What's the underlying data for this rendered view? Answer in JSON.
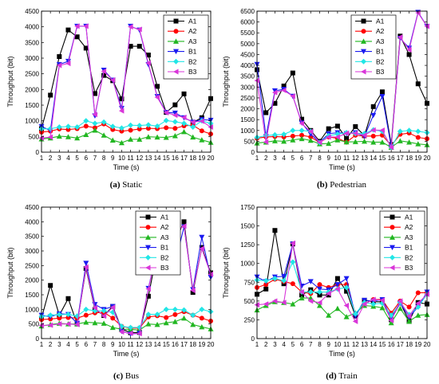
{
  "colors": {
    "A1": "#000000",
    "A2": "#ff0000",
    "A3": "#22b722",
    "B1": "#1b1bf0",
    "B2": "#22e6e6",
    "B3": "#d936d9"
  },
  "markers": {
    "A1": "square",
    "A2": "circle",
    "A3": "triangle-up",
    "B1": "triangle-down",
    "B2": "diamond",
    "B3": "triangle-left"
  },
  "chart_data": [
    {
      "type": "line",
      "caption_letter": "(a)",
      "caption_text": " Static",
      "xlabel": "Time (s)",
      "ylabel": "Throughput (bit)",
      "x": [
        1,
        2,
        3,
        4,
        5,
        6,
        7,
        8,
        9,
        10,
        11,
        12,
        13,
        14,
        15,
        16,
        17,
        18,
        19,
        20
      ],
      "xlim": [
        1,
        20
      ],
      "ylim": [
        0,
        4500
      ],
      "yticks": [
        0,
        500,
        1000,
        1500,
        2000,
        2500,
        3000,
        3500,
        4000,
        4500
      ],
      "legend_position": "top-right",
      "series": [
        {
          "name": "A1",
          "values": [
            750,
            1820,
            3050,
            3900,
            3680,
            3320,
            1870,
            2450,
            2280,
            1700,
            3380,
            3380,
            3100,
            2100,
            1270,
            1510,
            1860,
            950,
            1100,
            1710
          ]
        },
        {
          "name": "A2",
          "values": [
            640,
            670,
            740,
            720,
            750,
            830,
            780,
            900,
            720,
            670,
            700,
            740,
            760,
            750,
            780,
            760,
            840,
            860,
            680,
            580
          ]
        },
        {
          "name": "A3",
          "values": [
            420,
            450,
            510,
            490,
            450,
            560,
            700,
            540,
            380,
            300,
            410,
            410,
            490,
            480,
            470,
            520,
            650,
            480,
            390,
            310
          ]
        },
        {
          "name": "B1",
          "values": [
            820,
            690,
            2800,
            2900,
            4020,
            4020,
            1160,
            2620,
            2300,
            1400,
            4020,
            3900,
            2800,
            1780,
            1270,
            1250,
            1100,
            960,
            1040,
            1020
          ]
        },
        {
          "name": "B2",
          "values": [
            740,
            750,
            800,
            820,
            800,
            1000,
            920,
            960,
            820,
            770,
            860,
            850,
            870,
            830,
            1010,
            970,
            920,
            800,
            1000,
            920
          ]
        },
        {
          "name": "B3",
          "values": [
            450,
            480,
            2770,
            2830,
            4020,
            4020,
            1200,
            2580,
            2300,
            1320,
            4000,
            3920,
            2840,
            1750,
            1260,
            1180,
            1110,
            960,
            990,
            800
          ]
        }
      ]
    },
    {
      "type": "line",
      "caption_letter": "(b)",
      "caption_text": " Pedestrian",
      "xlabel": "Time (s)",
      "ylabel": "Throughput (bit)",
      "x": [
        1,
        2,
        3,
        4,
        5,
        6,
        7,
        8,
        9,
        10,
        11,
        12,
        13,
        14,
        15,
        16,
        17,
        18,
        19,
        20
      ],
      "xlim": [
        1,
        20
      ],
      "ylim": [
        0,
        6500
      ],
      "yticks": [
        0,
        500,
        1000,
        1500,
        2000,
        2500,
        3000,
        3500,
        4000,
        4500,
        5000,
        5500,
        6000,
        6500
      ],
      "legend_position": "top-left",
      "series": [
        {
          "name": "A1",
          "values": [
            3800,
            1820,
            2250,
            3050,
            3650,
            1520,
            1000,
            500,
            1080,
            1200,
            630,
            1180,
            760,
            2100,
            2780,
            350,
            5350,
            4500,
            3150,
            2250
          ]
        },
        {
          "name": "A2",
          "values": [
            640,
            700,
            720,
            700,
            740,
            780,
            700,
            440,
            700,
            640,
            460,
            780,
            740,
            740,
            780,
            300,
            820,
            880,
            680,
            620
          ]
        },
        {
          "name": "A3",
          "values": [
            420,
            460,
            520,
            500,
            560,
            620,
            540,
            380,
            400,
            560,
            470,
            480,
            500,
            460,
            460,
            220,
            520,
            460,
            380,
            340
          ]
        },
        {
          "name": "B1",
          "values": [
            4050,
            720,
            2830,
            2900,
            2580,
            1350,
            830,
            450,
            850,
            900,
            860,
            900,
            730,
            1700,
            2570,
            250,
            5250,
            4800,
            6450,
            5800
          ]
        },
        {
          "name": "B2",
          "values": [
            680,
            760,
            800,
            820,
            1000,
            1000,
            960,
            440,
            760,
            830,
            900,
            860,
            860,
            1030,
            960,
            220,
            960,
            1000,
            960,
            900
          ]
        },
        {
          "name": "B3",
          "values": [
            3300,
            470,
            2750,
            2850,
            2580,
            1320,
            950,
            450,
            700,
            700,
            870,
            870,
            780,
            1020,
            1010,
            220,
            5300,
            4720,
            6420,
            5800
          ]
        }
      ]
    },
    {
      "type": "line",
      "caption_letter": "(c)",
      "caption_text": " Bus",
      "xlabel": "Time (s)",
      "ylabel": "Throughput (bit)",
      "x": [
        1,
        2,
        3,
        4,
        5,
        6,
        7,
        8,
        9,
        10,
        11,
        12,
        13,
        14,
        15,
        16,
        17,
        18,
        19,
        20
      ],
      "xlim": [
        1,
        20
      ],
      "ylim": [
        0,
        4500
      ],
      "yticks": [
        0,
        500,
        1000,
        1500,
        2000,
        2500,
        3000,
        3500,
        4000,
        4500
      ],
      "legend_position": "top-left",
      "series": [
        {
          "name": "A1",
          "values": [
            700,
            1820,
            800,
            1370,
            500,
            2400,
            1000,
            790,
            1100,
            330,
            200,
            210,
            1450,
            3000,
            3650,
            3330,
            4000,
            1580,
            3120,
            2250
          ]
        },
        {
          "name": "A2",
          "values": [
            650,
            670,
            700,
            720,
            700,
            800,
            880,
            900,
            700,
            420,
            360,
            360,
            740,
            780,
            720,
            820,
            920,
            800,
            700,
            600
          ]
        },
        {
          "name": "A3",
          "values": [
            430,
            480,
            520,
            500,
            500,
            560,
            540,
            520,
            380,
            320,
            320,
            290,
            500,
            480,
            540,
            580,
            700,
            480,
            400,
            330
          ]
        },
        {
          "name": "B1",
          "values": [
            800,
            750,
            850,
            830,
            530,
            2580,
            1170,
            1000,
            1100,
            250,
            160,
            180,
            1720,
            3100,
            4030,
            2570,
            3830,
            1680,
            3470,
            2100
          ]
        },
        {
          "name": "B2",
          "values": [
            750,
            800,
            820,
            830,
            770,
            1000,
            950,
            950,
            900,
            420,
            380,
            380,
            830,
            830,
            1000,
            1000,
            980,
            800,
            1000,
            920
          ]
        },
        {
          "name": "B3",
          "values": [
            450,
            460,
            500,
            500,
            480,
            2450,
            1050,
            770,
            1070,
            230,
            180,
            170,
            1700,
            3050,
            3980,
            3650,
            3850,
            1650,
            3080,
            2200
          ]
        }
      ]
    },
    {
      "type": "line",
      "caption_letter": "(d)",
      "caption_text": " Train",
      "xlabel": "Time (s)",
      "ylabel": "Throughput (bit)",
      "x": [
        1,
        2,
        3,
        4,
        5,
        6,
        7,
        8,
        9,
        10,
        11,
        12,
        13,
        14,
        15,
        16,
        17,
        18,
        19,
        20
      ],
      "xlim": [
        1,
        20
      ],
      "ylim": [
        0,
        1750
      ],
      "yticks": [
        0,
        250,
        500,
        750,
        1000,
        1250,
        1500,
        1750
      ],
      "legend_position": "top-right",
      "series": [
        {
          "name": "A1",
          "values": [
            590,
            660,
            1440,
            730,
            1260,
            580,
            650,
            580,
            580,
            800,
            630,
            300,
            510,
            490,
            490,
            250,
            480,
            230,
            480,
            460
          ]
        },
        {
          "name": "A2",
          "values": [
            680,
            720,
            790,
            760,
            730,
            620,
            600,
            720,
            680,
            720,
            720,
            330,
            460,
            520,
            520,
            340,
            500,
            420,
            610,
            610
          ]
        },
        {
          "name": "A3",
          "values": [
            380,
            440,
            490,
            480,
            460,
            540,
            540,
            440,
            310,
            400,
            290,
            340,
            440,
            430,
            410,
            210,
            400,
            230,
            310,
            320
          ]
        },
        {
          "name": "B1",
          "values": [
            820,
            760,
            820,
            830,
            1260,
            700,
            760,
            660,
            650,
            720,
            800,
            300,
            510,
            500,
            520,
            280,
            470,
            290,
            420,
            620
          ]
        },
        {
          "name": "B2",
          "values": [
            780,
            770,
            800,
            770,
            1020,
            620,
            620,
            620,
            620,
            660,
            680,
            330,
            480,
            460,
            470,
            310,
            480,
            320,
            420,
            590
          ]
        },
        {
          "name": "B3",
          "values": [
            450,
            460,
            500,
            480,
            1270,
            620,
            500,
            480,
            600,
            660,
            440,
            230,
            460,
            520,
            510,
            240,
            500,
            300,
            470,
            590
          ]
        }
      ]
    }
  ]
}
